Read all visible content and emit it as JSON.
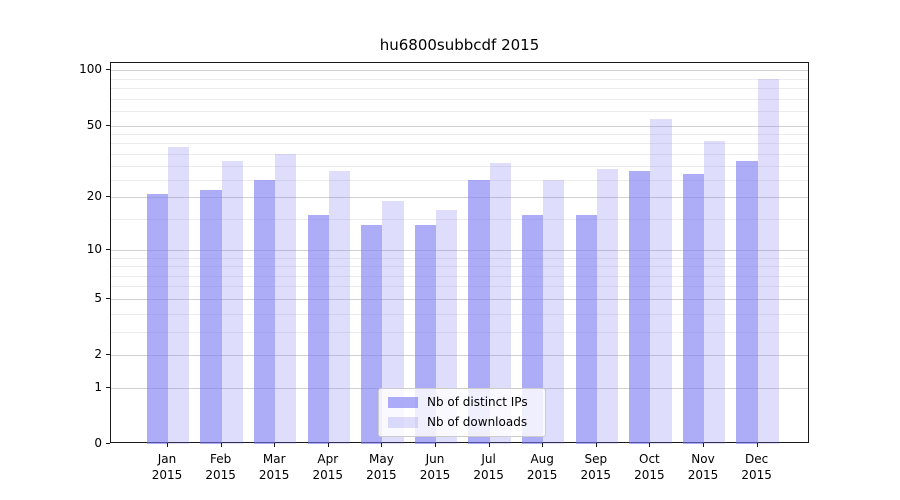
{
  "title": "hu6800subbcdf 2015",
  "chart_data": {
    "type": "bar",
    "title": "hu6800subbcdf 2015",
    "y_scale": "log10(1+x)",
    "ylim": [
      0,
      110
    ],
    "grid": "both (major and minor horizontal gridlines)",
    "months": [
      "Jan",
      "Feb",
      "Mar",
      "Apr",
      "May",
      "Jun",
      "Jul",
      "Aug",
      "Sep",
      "Oct",
      "Nov",
      "Dec"
    ],
    "year": "2015",
    "categories": [
      "Jan 2015",
      "Feb 2015",
      "Mar 2015",
      "Apr 2015",
      "May 2015",
      "Jun 2015",
      "Jul 2015",
      "Aug 2015",
      "Sep 2015",
      "Oct 2015",
      "Nov 2015",
      "Dec 2015"
    ],
    "series": [
      {
        "name": "Nb of distinct IPs",
        "base_color": "#7A7AF2",
        "alpha": 0.62,
        "fill": "rgba(122,122,242,0.62)",
        "values": [
          21,
          22,
          25,
          16,
          14,
          14,
          25,
          16,
          16,
          28,
          27,
          32
        ]
      },
      {
        "name": "Nb of downloads",
        "base_color": "#7A7AF2",
        "alpha": 0.25,
        "fill": "rgba(122,122,242,0.25)",
        "values": [
          38,
          32,
          35,
          28,
          19,
          17,
          31,
          25,
          29,
          54,
          41,
          90
        ]
      }
    ],
    "y_major_ticks": [
      0,
      1,
      2,
      5,
      10,
      20,
      50,
      100
    ],
    "y_minor_gridlines": [
      3,
      4,
      6,
      7,
      8,
      9,
      15,
      25,
      30,
      35,
      40,
      45,
      60,
      70,
      80,
      90
    ],
    "legend": {
      "position": "lower center",
      "entries": [
        "Nb of distinct IPs",
        "Nb of downloads"
      ]
    },
    "colors": {
      "spine": "#1a1a1a",
      "grid_major": "#d2d2d2",
      "grid_minor": "#ececec",
      "legend_border": "#cccccc"
    }
  }
}
